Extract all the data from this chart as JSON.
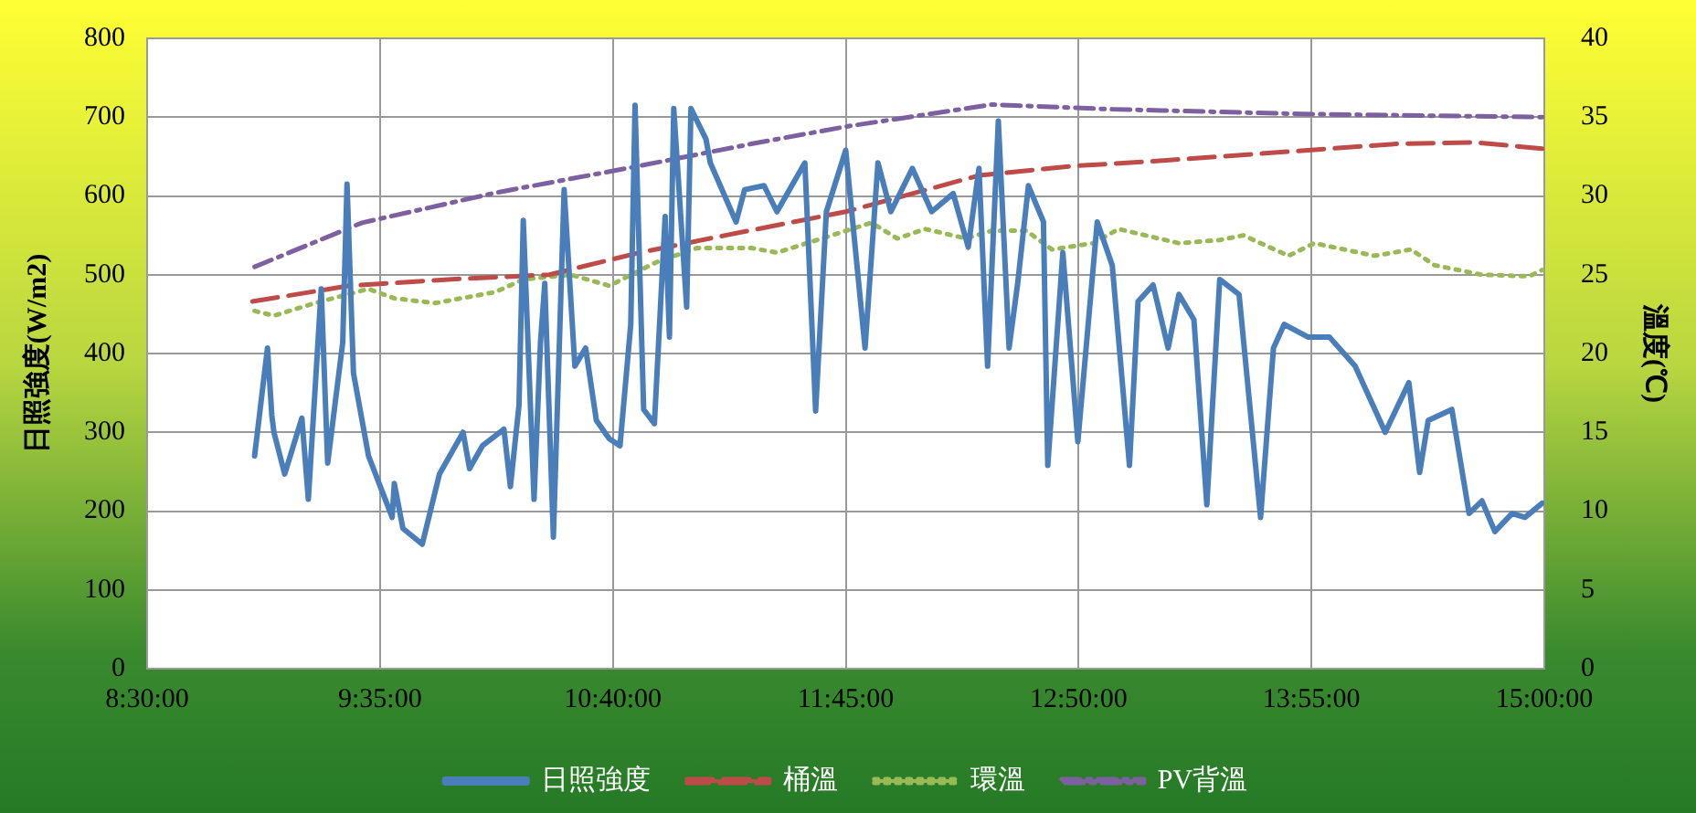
{
  "chart_data": {
    "type": "line",
    "ylabel": "日照強度(W/m2)",
    "y2label": "溫度(℃)",
    "xlim": [
      8.5,
      15
    ],
    "xticks": [
      {
        "value": 8.5,
        "label": "8:30:00"
      },
      {
        "value": 9.5833,
        "label": "9:35:00"
      },
      {
        "value": 10.6667,
        "label": "10:40:00"
      },
      {
        "value": 11.75,
        "label": "11:45:00"
      },
      {
        "value": 12.8333,
        "label": "12:50:00"
      },
      {
        "value": 13.9167,
        "label": "13:55:00"
      },
      {
        "value": 15,
        "label": "15:00:00"
      }
    ],
    "ylim": [
      0,
      800
    ],
    "yticks": [
      0,
      100,
      200,
      300,
      400,
      500,
      600,
      700,
      800
    ],
    "y2lim": [
      0,
      40
    ],
    "y2ticks": [
      0,
      5,
      10,
      15,
      20,
      25,
      30,
      35,
      40
    ],
    "grid": true,
    "legend": "bottom",
    "marker": "none",
    "series": [
      {
        "name": "日照強度",
        "color": "#4a7ebb",
        "line_style": "solid",
        "x": [
          9.0,
          9.06,
          9.08,
          9.09,
          9.14,
          9.22,
          9.25,
          9.31,
          9.34,
          9.41,
          9.43,
          9.46,
          9.53,
          9.64,
          9.65,
          9.69,
          9.78,
          9.86,
          9.97,
          10.0,
          10.06,
          10.16,
          10.19,
          10.23,
          10.25,
          10.3,
          10.33,
          10.35,
          10.39,
          10.44,
          10.49,
          10.54,
          10.59,
          10.65,
          10.7,
          10.75,
          10.77,
          10.81,
          10.86,
          10.91,
          10.93,
          10.95,
          11.01,
          11.03,
          11.1,
          11.12,
          11.24,
          11.28,
          11.37,
          11.43,
          11.56,
          11.61,
          11.66,
          11.75,
          11.84,
          11.9,
          11.96,
          12.06,
          12.15,
          12.25,
          12.32,
          12.37,
          12.41,
          12.46,
          12.51,
          12.55,
          12.6,
          12.67,
          12.69,
          12.76,
          12.83,
          12.92,
          12.99,
          13.07,
          13.11,
          13.18,
          13.25,
          13.3,
          13.37,
          13.43,
          13.49,
          13.58,
          13.68,
          13.74,
          13.79,
          13.9,
          14.0,
          14.12,
          14.26,
          14.37,
          14.42,
          14.46,
          14.57,
          14.65,
          14.71,
          14.77,
          14.85,
          14.91,
          14.99
        ],
        "values": [
          270,
          407,
          322,
          300,
          247,
          318,
          215,
          482,
          261,
          414,
          615,
          375,
          270,
          192,
          235,
          178,
          158,
          247,
          300,
          254,
          283,
          304,
          231,
          334,
          569,
          215,
          414,
          489,
          167,
          608,
          384,
          407,
          315,
          292,
          283,
          437,
          715,
          329,
          311,
          574,
          421,
          711,
          459,
          711,
          672,
          642,
          567,
          608,
          613,
          580,
          642,
          327,
          580,
          658,
          407,
          642,
          580,
          635,
          580,
          603,
          535,
          635,
          384,
          695,
          407,
          489,
          613,
          567,
          258,
          528,
          288,
          567,
          512,
          258,
          466,
          487,
          407,
          475,
          443,
          208,
          494,
          475,
          192,
          407,
          437,
          421,
          421,
          384,
          300,
          363,
          249,
          315,
          329,
          197,
          213,
          174,
          197,
          192,
          210
        ]
      },
      {
        "name": "桶溫",
        "color": "#be4b48",
        "line_style": "dashed",
        "axis": "y2",
        "x": [
          8.99,
          9.44,
          9.9,
          10.37,
          10.79,
          11.19,
          11.75,
          12.37,
          12.81,
          13.18,
          13.9,
          14.31,
          14.68,
          14.99
        ],
        "values": [
          23.3,
          24.3,
          24.7,
          25.0,
          26.4,
          27.5,
          29.0,
          31.3,
          31.9,
          32.2,
          32.9,
          33.3,
          33.4,
          33.0
        ]
      },
      {
        "name": "環溫",
        "color": "#98b954",
        "line_style": "dotted",
        "axis": "y2",
        "x": [
          9.0,
          9.09,
          9.28,
          9.53,
          9.65,
          9.84,
          10.12,
          10.25,
          10.47,
          10.65,
          10.87,
          11.06,
          11.31,
          11.43,
          11.87,
          11.99,
          12.12,
          12.31,
          12.43,
          12.59,
          12.71,
          12.9,
          13.02,
          13.3,
          13.49,
          13.6,
          13.81,
          13.93,
          14.21,
          14.38,
          14.49,
          14.71,
          14.93,
          14.99
        ],
        "values": [
          22.7,
          22.4,
          23.2,
          24.1,
          23.5,
          23.2,
          23.9,
          24.7,
          25.0,
          24.3,
          25.8,
          26.7,
          26.7,
          26.4,
          28.3,
          27.3,
          27.9,
          27.3,
          27.8,
          27.8,
          26.6,
          27.0,
          27.9,
          27.0,
          27.2,
          27.5,
          26.2,
          27.0,
          26.2,
          26.6,
          25.6,
          25.0,
          24.9,
          25.3
        ]
      },
      {
        "name": "PV背溫",
        "color": "#7d60a0",
        "line_style": "dashdot",
        "axis": "y2",
        "x": [
          9.0,
          9.5,
          10.12,
          10.75,
          11.31,
          11.75,
          12.43,
          12.99,
          13.87,
          14.99
        ],
        "values": [
          25.5,
          28.3,
          30.2,
          31.8,
          33.3,
          34.4,
          35.8,
          35.5,
          35.2,
          35.0
        ]
      }
    ]
  }
}
